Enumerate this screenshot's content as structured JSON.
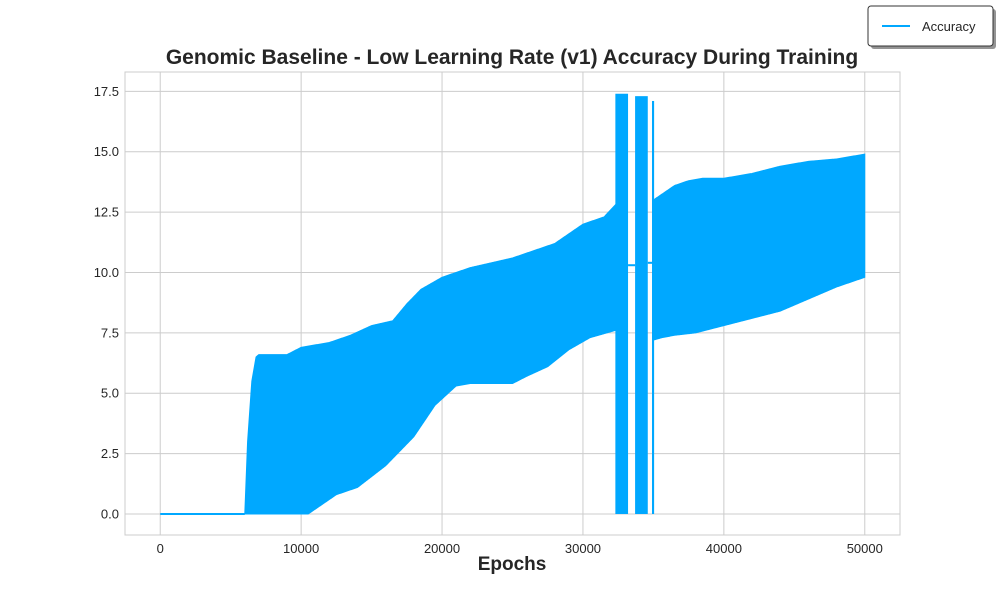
{
  "chart_data": {
    "type": "area",
    "title": "Genomic Baseline - Low Learning Rate (v1) Accuracy During Training",
    "xlabel": "Epochs",
    "ylabel": "",
    "xlim": [
      -2500,
      52500
    ],
    "ylim": [
      -0.87,
      18.3
    ],
    "x_ticks": [
      0,
      10000,
      20000,
      30000,
      40000,
      50000
    ],
    "x_tick_labels": [
      "0",
      "10000",
      "20000",
      "30000",
      "40000",
      "50000"
    ],
    "y_ticks": [
      0,
      2.5,
      5,
      7.5,
      10,
      12.5,
      15,
      17.5
    ],
    "y_tick_labels": [
      "0.0",
      "2.5",
      "5.0",
      "7.5",
      "10.0",
      "12.5",
      "15.0",
      "17.5"
    ],
    "grid": true,
    "legend_position": "upper-right, outside plot",
    "color": "#00a8ff",
    "series": [
      {
        "name": "Accuracy",
        "description": "rapidly oscillating accuracy; band between lower and upper envelopes",
        "upper_envelope": {
          "x": [
            0,
            6000,
            6200,
            6500,
            6800,
            7000,
            9000,
            10000,
            12000,
            13500,
            15000,
            16500,
            17500,
            18500,
            20000,
            22000,
            25000,
            28000,
            30000,
            31500,
            32300
          ],
          "y": [
            0,
            0,
            3.0,
            5.5,
            6.5,
            6.6,
            6.6,
            6.9,
            7.1,
            7.4,
            7.8,
            8.0,
            8.7,
            9.3,
            9.8,
            10.2,
            10.6,
            11.2,
            12.0,
            12.3,
            12.8
          ]
        },
        "lower_envelope": {
          "x": [
            0,
            10500,
            11500,
            12500,
            14000,
            16000,
            18000,
            19500,
            21000,
            22000,
            25000,
            26000,
            27500,
            29000,
            30500,
            32300
          ],
          "y": [
            0,
            0,
            0.4,
            0.8,
            1.1,
            2.0,
            3.2,
            4.5,
            5.3,
            5.4,
            5.4,
            5.7,
            6.1,
            6.8,
            7.3,
            7.6
          ]
        },
        "spikes": [
          {
            "x_range": [
              32300,
              33200
            ],
            "y_range": [
              0,
              17.4
            ]
          },
          {
            "x_range": [
              33700,
              34600
            ],
            "y_range": [
              0,
              17.3
            ]
          },
          {
            "x_range": [
              34900,
              35050
            ],
            "y_range": [
              0,
              17.1
            ]
          }
        ],
        "upper_envelope_late": {
          "x": [
            35000,
            35500,
            36500,
            37500,
            38500,
            40000,
            42000,
            44000,
            46000,
            48000,
            50000
          ],
          "y": [
            13.0,
            13.2,
            13.6,
            13.8,
            13.9,
            13.9,
            14.1,
            14.4,
            14.6,
            14.7,
            14.9
          ]
        },
        "lower_envelope_late": {
          "x": [
            35000,
            35600,
            36500,
            38000,
            40000,
            42000,
            44000,
            46000,
            48000,
            50000
          ],
          "y": [
            7.2,
            7.3,
            7.4,
            7.5,
            7.8,
            8.1,
            8.4,
            8.9,
            9.4,
            9.8
          ]
        }
      }
    ]
  }
}
